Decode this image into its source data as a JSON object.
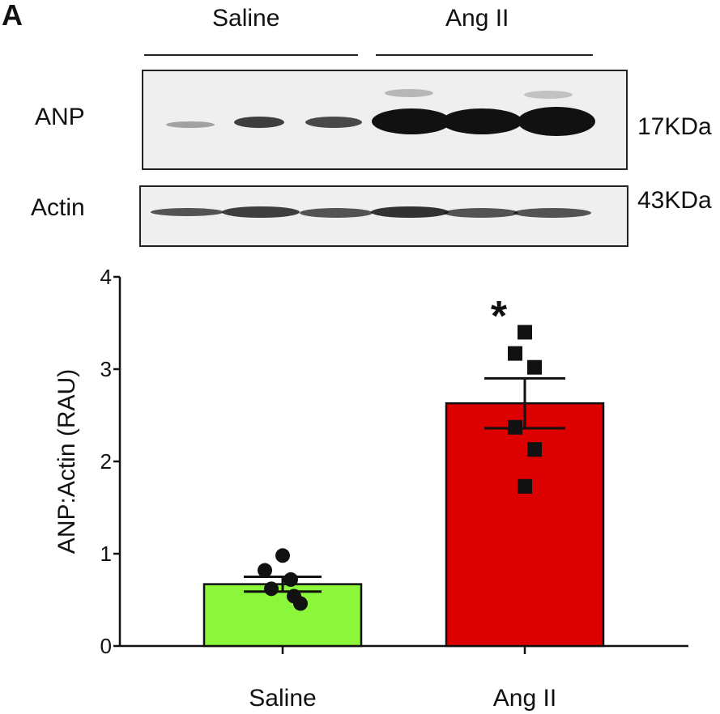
{
  "figure": {
    "panel_letter": "A",
    "groups": [
      "Saline",
      "Ang II"
    ],
    "blot_labels": [
      "ANP",
      "Actin"
    ],
    "kda_labels": [
      "17KDa",
      "43KDa"
    ]
  },
  "chart_data": {
    "type": "bar",
    "categories": [
      "Saline",
      "Ang II"
    ],
    "values": [
      0.67,
      2.63
    ],
    "error": [
      0.08,
      0.27
    ],
    "bar_colors": [
      "#8cf63a",
      "#dd0000"
    ],
    "points": [
      [
        0.98,
        0.82,
        0.72,
        0.62,
        0.54,
        0.46
      ],
      [
        3.4,
        3.17,
        3.02,
        2.37,
        2.13,
        1.73
      ]
    ],
    "point_markers": [
      "circle",
      "square"
    ],
    "annotations": [
      {
        "category": "Ang II",
        "text": "*"
      }
    ],
    "ylabel": "ANP:Actin (RAU)",
    "xlabel": "",
    "ylim": [
      0,
      4
    ],
    "yticks": [
      0,
      1,
      2,
      3,
      4
    ],
    "grid": false
  }
}
